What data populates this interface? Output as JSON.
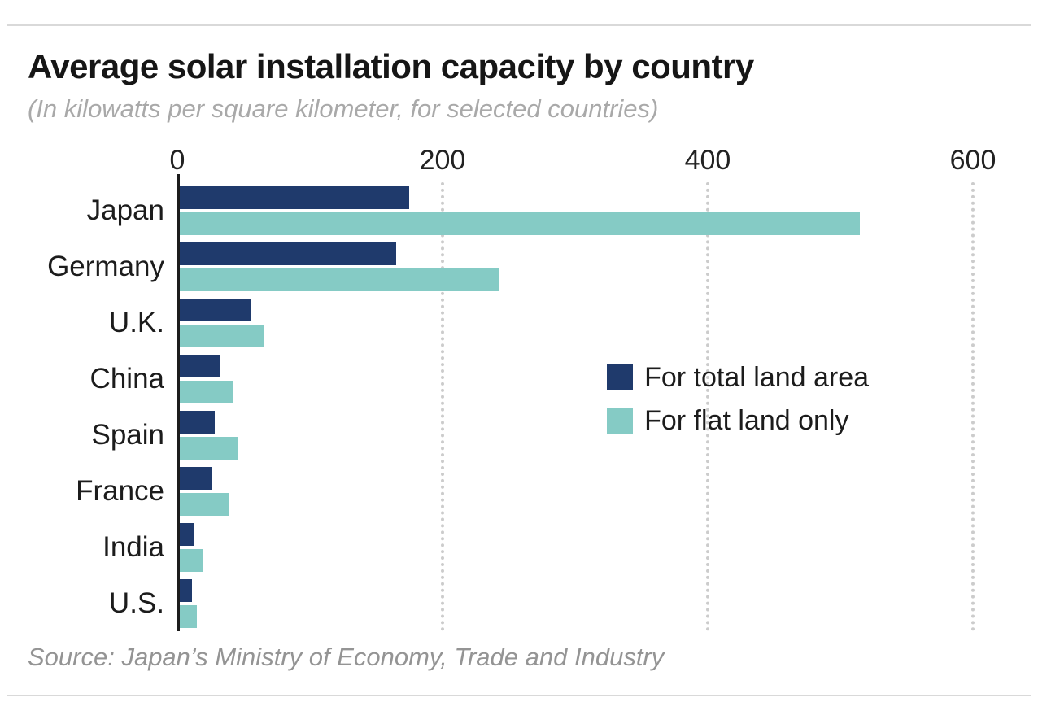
{
  "chart_data": {
    "type": "bar",
    "orientation": "horizontal",
    "title": "Average solar installation capacity by country",
    "subtitle": "(In kilowatts per square kilometer, for selected countries)",
    "source": "Source: Japan’s Ministry of Economy, Trade and Industry",
    "categories": [
      "Japan",
      "Germany",
      "U.K.",
      "China",
      "Spain",
      "France",
      "India",
      "U.S."
    ],
    "series": [
      {
        "name": "For total land area",
        "color": "#1f3a6c",
        "values": [
          175,
          165,
          56,
          32,
          28,
          26,
          13,
          11
        ]
      },
      {
        "name": "For flat land only",
        "color": "#85cbc5",
        "values": [
          515,
          243,
          65,
          42,
          46,
          39,
          19,
          15
        ]
      }
    ],
    "xlim": [
      0,
      600
    ],
    "x_ticks": [
      0,
      200,
      400,
      600
    ],
    "grid": "dotted-vertical",
    "legend_position": "inside-right",
    "axis_color": "#1c1c1c",
    "gridline_color": "#cccccc"
  }
}
